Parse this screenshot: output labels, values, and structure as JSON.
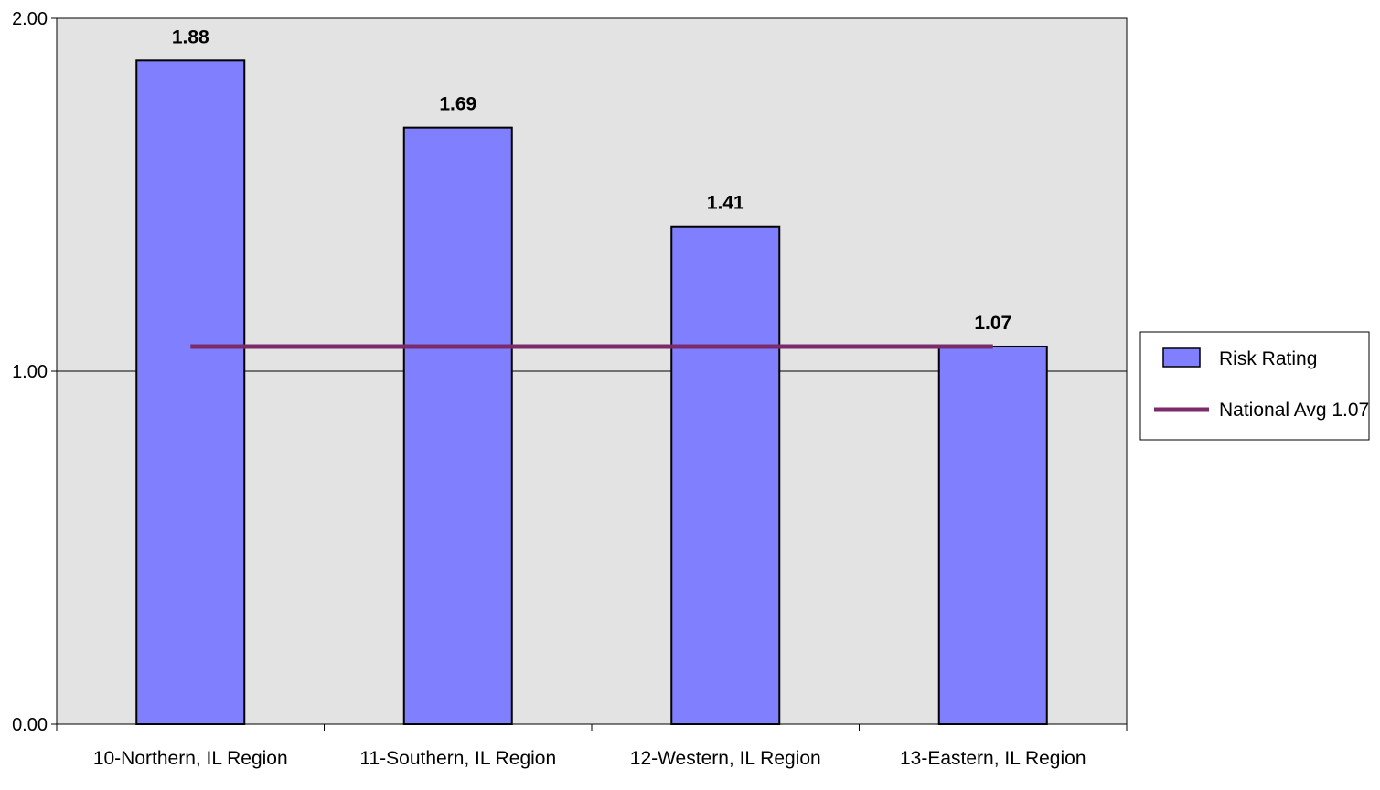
{
  "chart_data": {
    "type": "bar",
    "categories": [
      "10-Northern, IL Region",
      "11-Southern, IL Region",
      "12-Western, IL Region",
      "13-Eastern, IL Region"
    ],
    "series": [
      {
        "name": "Risk Rating",
        "type": "bar",
        "values": [
          1.88,
          1.69,
          1.41,
          1.07
        ],
        "data_labels": [
          "1.88",
          "1.69",
          "1.41",
          "1.07"
        ],
        "color": "#8080ff"
      },
      {
        "name": "National Avg 1.07",
        "type": "line",
        "values": [
          1.07,
          1.07,
          1.07,
          1.07
        ],
        "color": "#7b2a6a"
      }
    ],
    "y_ticks": [
      "0.00",
      "1.00",
      "2.00"
    ],
    "ylim": [
      0,
      2
    ],
    "grid": true,
    "legend_position": "right",
    "plot_background": "#e3e3e3"
  }
}
